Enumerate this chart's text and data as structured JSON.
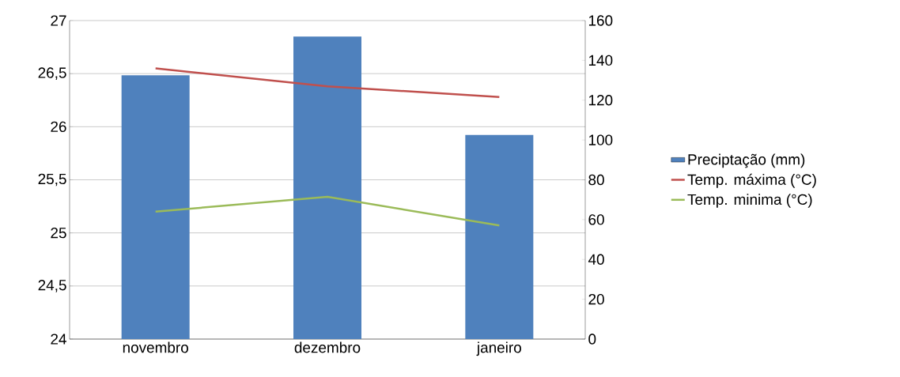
{
  "chart_data": {
    "type": "bar",
    "categories": [
      "novembro",
      "dezembro",
      "janeiro"
    ],
    "series": [
      {
        "name": "Preciptação (mm)",
        "axis": "y2",
        "color": "#4f81bd",
        "values": [
          132.5,
          152,
          102.5
        ]
      },
      {
        "name": "Temp. máxima (°C)",
        "type": "line",
        "color": "#c0504d",
        "values": [
          26.55,
          26.38,
          26.28
        ]
      },
      {
        "name": "Temp. minima (°C)",
        "type": "line",
        "color": "#9bbb59",
        "values": [
          25.2,
          25.34,
          25.07
        ]
      }
    ],
    "ylim": [
      24,
      27
    ],
    "yticks": [
      24,
      {
        "value": 24.5,
        "label": "24,5"
      },
      25,
      {
        "value": 25.5,
        "label": "25,5"
      },
      26,
      {
        "value": 26.5,
        "label": "26,5"
      },
      27
    ],
    "y2lim": [
      0,
      160
    ],
    "y2ticks": [
      0,
      20,
      40,
      60,
      80,
      100,
      120,
      140,
      160
    ],
    "grid": "y",
    "legend": "right"
  }
}
